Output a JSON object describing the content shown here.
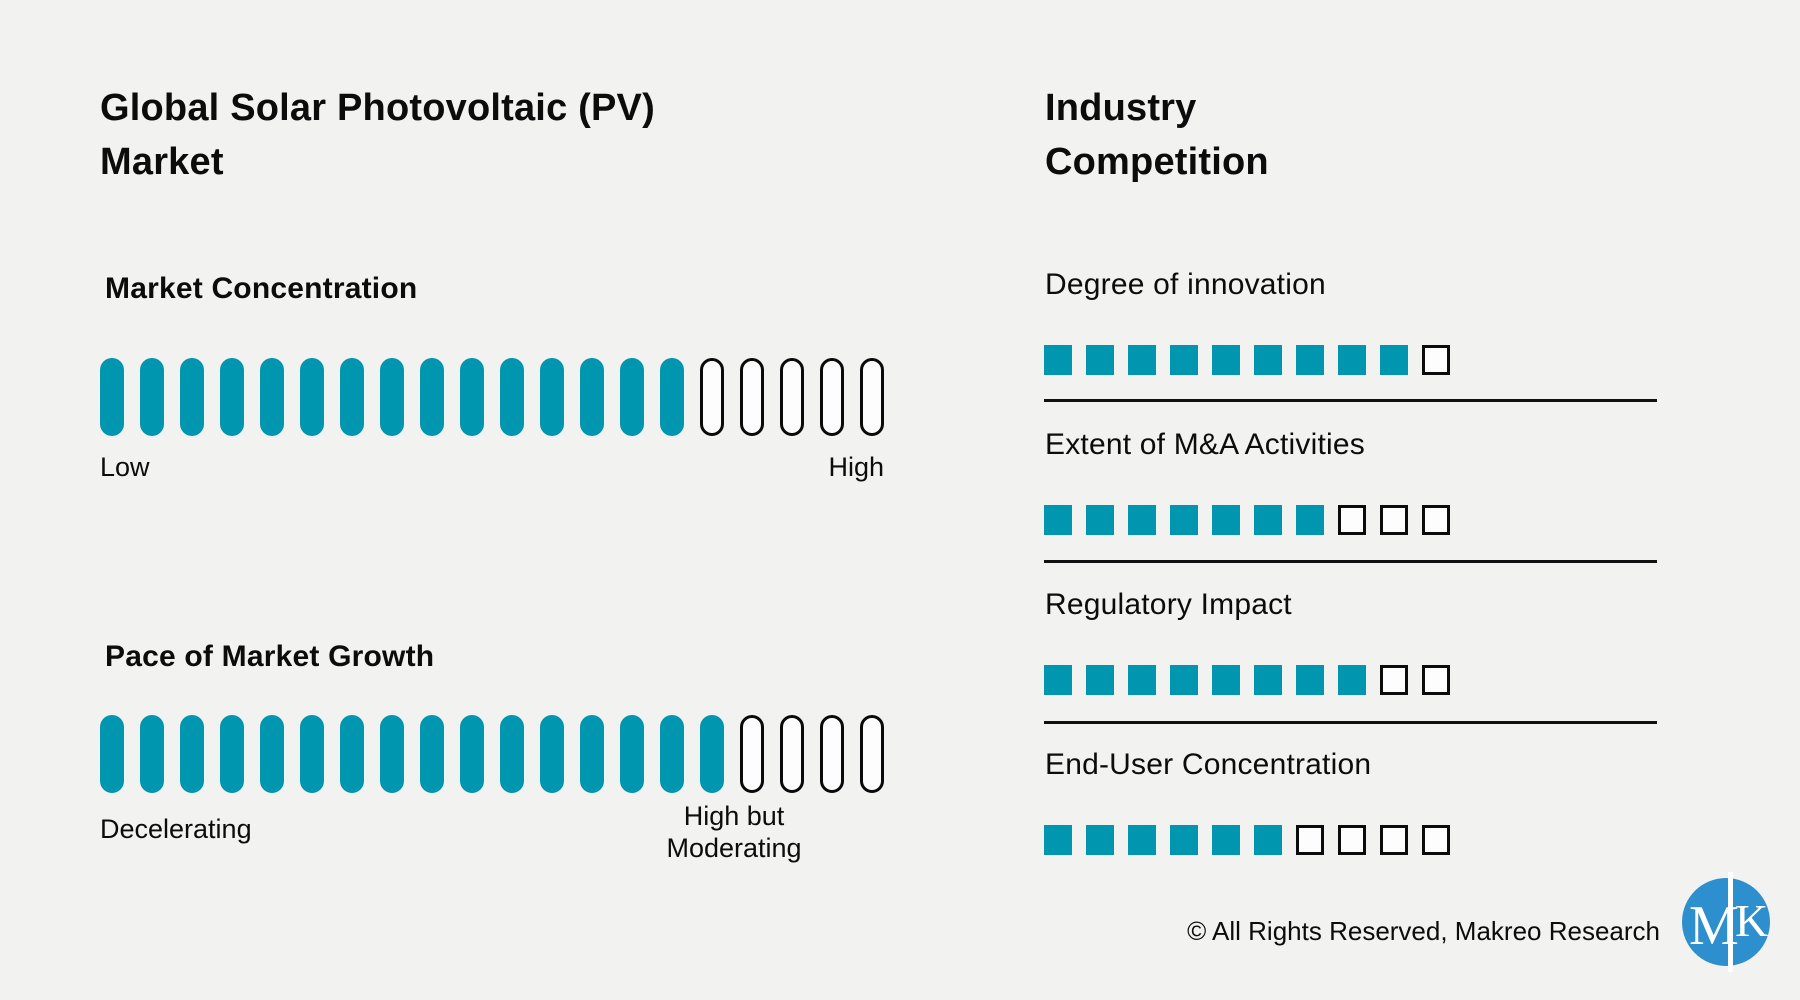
{
  "page": {
    "background_color": "#f2f2f1",
    "accent_teal": "#0096b0",
    "text_color": "#0c0c0c",
    "logo_blue": "#2e8fce"
  },
  "left_panel": {
    "title": "Global Solar Photovoltaic (PV) Market",
    "meters": [
      {
        "label": "Market Concentration",
        "filled": 15,
        "total": 20,
        "left_label": "Low",
        "right_label": "High"
      },
      {
        "label": "Pace of Market Growth",
        "filled": 16,
        "total": 20,
        "left_label": "Decelerating",
        "right_label": "High but Moderating"
      }
    ]
  },
  "right_panel": {
    "title": "Industry Competition",
    "metrics": [
      {
        "label": "Degree of innovation",
        "filled": 9,
        "total": 10
      },
      {
        "label": "Extent of M&A Activities",
        "filled": 7,
        "total": 10
      },
      {
        "label": "Regulatory Impact",
        "filled": 8,
        "total": 10
      },
      {
        "label": "End-User Concentration",
        "filled": 6,
        "total": 10
      }
    ]
  },
  "footer": {
    "copyright": "© All Rights Reserved, Makreo Research",
    "logo_m": "M",
    "logo_k": "K"
  },
  "chart_data": [
    {
      "type": "bar",
      "title": "Global Solar Photovoltaic (PV) Market",
      "categories": [
        "Market Concentration",
        "Pace of Market Growth"
      ],
      "values": [
        15,
        16
      ],
      "value_max": 20,
      "units": "segments filled of 20",
      "scale_endpoints": [
        {
          "low": "Low",
          "high": "High"
        },
        {
          "low": "Decelerating",
          "high": "High but Moderating"
        }
      ],
      "legend_position": "none",
      "grid": false
    },
    {
      "type": "bar",
      "title": "Industry Competition",
      "categories": [
        "Degree of innovation",
        "Extent of M&A Activities",
        "Regulatory Impact",
        "End-User Concentration"
      ],
      "values": [
        9,
        7,
        8,
        6
      ],
      "value_max": 10,
      "units": "squares filled of 10",
      "legend_position": "none",
      "grid": false
    }
  ]
}
